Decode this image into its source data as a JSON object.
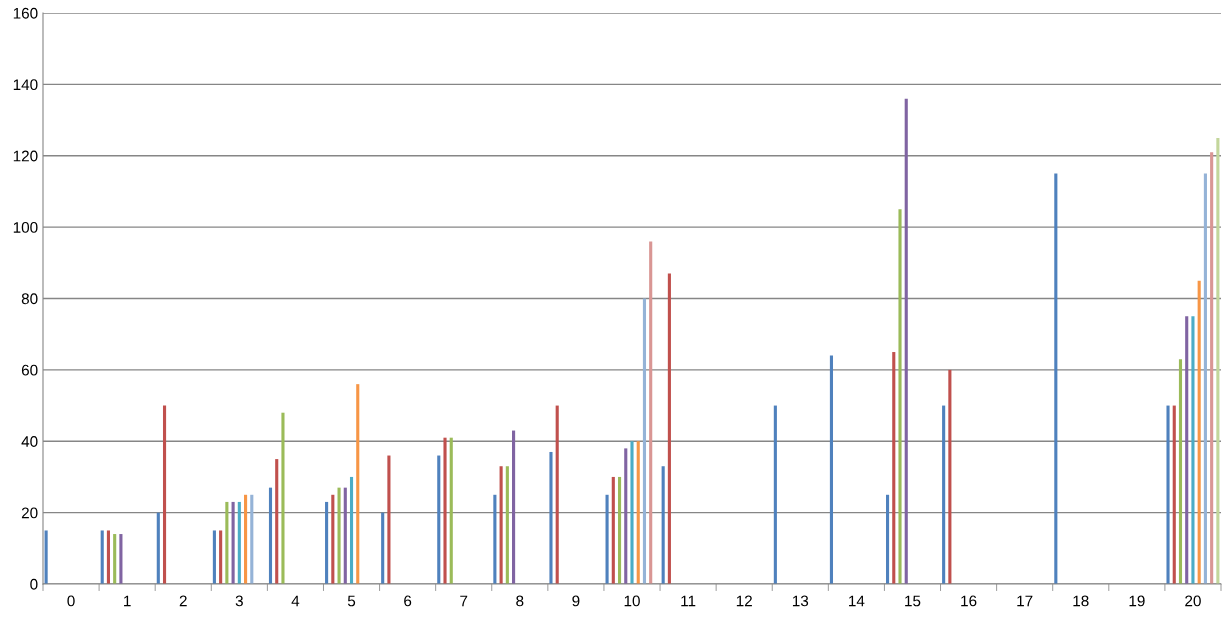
{
  "chart_data": {
    "type": "bar",
    "categories": [
      "0",
      "1",
      "2",
      "3",
      "4",
      "5",
      "6",
      "7",
      "8",
      "9",
      "10",
      "11",
      "12",
      "13",
      "14",
      "15",
      "16",
      "17",
      "18",
      "19",
      "20"
    ],
    "series": [
      {
        "color": "#4f81bd",
        "values": [
          15,
          15,
          20,
          15,
          27,
          23,
          20,
          36,
          25,
          37,
          25,
          33,
          null,
          50,
          64,
          25,
          50,
          null,
          115,
          null,
          50
        ]
      },
      {
        "color": "#c0504d",
        "values": [
          null,
          15,
          50,
          15,
          35,
          25,
          36,
          41,
          33,
          50,
          30,
          87,
          null,
          null,
          null,
          65,
          60,
          null,
          null,
          null,
          50
        ]
      },
      {
        "color": "#9bbb59",
        "values": [
          null,
          14,
          null,
          23,
          48,
          27,
          null,
          41,
          33,
          null,
          30,
          null,
          null,
          null,
          null,
          105,
          null,
          null,
          null,
          null,
          63
        ]
      },
      {
        "color": "#8064a2",
        "values": [
          null,
          14,
          null,
          23,
          null,
          27,
          null,
          null,
          43,
          null,
          38,
          null,
          null,
          null,
          null,
          136,
          null,
          null,
          null,
          null,
          75
        ]
      },
      {
        "color": "#4bacc6",
        "values": [
          null,
          null,
          null,
          23,
          null,
          30,
          null,
          null,
          null,
          null,
          40,
          null,
          null,
          null,
          null,
          null,
          null,
          null,
          null,
          null,
          75
        ]
      },
      {
        "color": "#f79646",
        "values": [
          null,
          null,
          null,
          25,
          null,
          56,
          null,
          null,
          null,
          null,
          40,
          null,
          null,
          null,
          null,
          null,
          null,
          null,
          null,
          null,
          85
        ]
      },
      {
        "color": "#95b3d7",
        "values": [
          null,
          null,
          null,
          25,
          null,
          null,
          null,
          null,
          null,
          null,
          80,
          null,
          null,
          null,
          null,
          null,
          null,
          null,
          null,
          null,
          115
        ]
      },
      {
        "color": "#d99694",
        "values": [
          null,
          null,
          null,
          null,
          null,
          null,
          null,
          null,
          null,
          null,
          96,
          null,
          null,
          null,
          null,
          null,
          null,
          null,
          null,
          null,
          121
        ]
      },
      {
        "color": "#c3d69b",
        "values": [
          null,
          null,
          null,
          null,
          null,
          null,
          null,
          null,
          null,
          null,
          null,
          null,
          null,
          null,
          null,
          null,
          null,
          null,
          null,
          null,
          125
        ]
      }
    ],
    "ylim": [
      0,
      160
    ],
    "yticks": [
      0,
      20,
      40,
      60,
      80,
      100,
      120,
      140,
      160
    ],
    "grid": "y",
    "legend": false
  }
}
